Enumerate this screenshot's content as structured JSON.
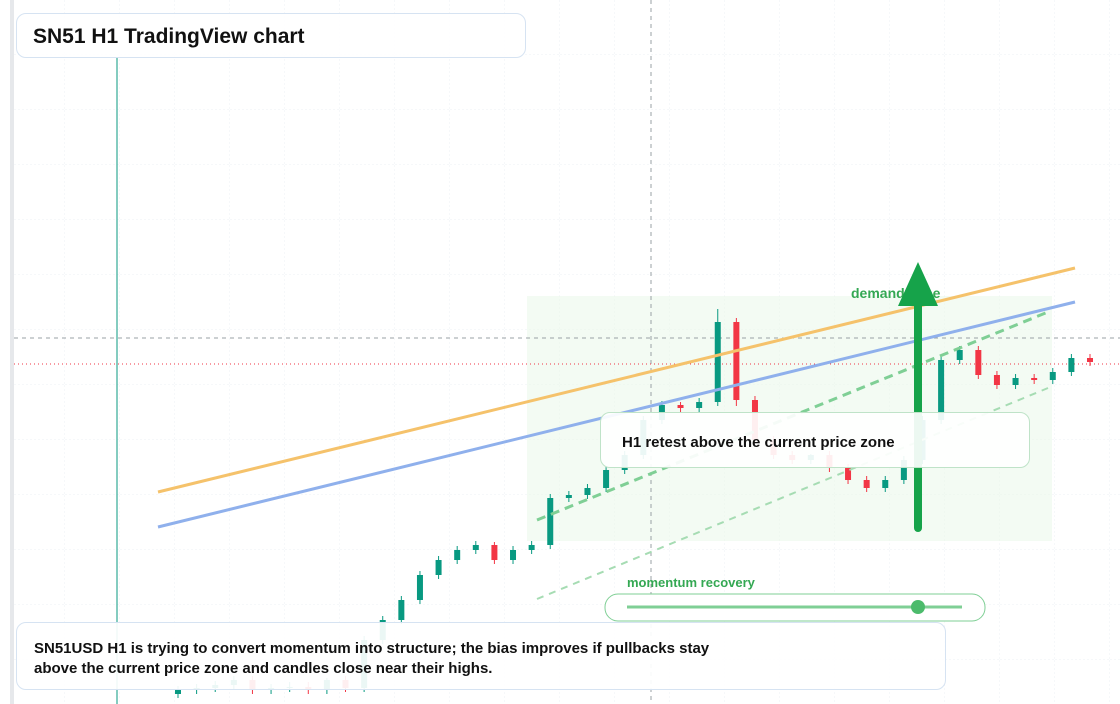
{
  "chart_data": {
    "type": "candlestick",
    "title": "SN51 H1 TradingView chart",
    "annotations": {
      "zone": "demand zone",
      "retest": "H1 retest above the current price zone",
      "momentum": "momentum recovery",
      "note": "SN51USD H1 is trying to convert momentum into structure; the bias improves if pullbacks stay above the current price zone and candles close near their highs."
    },
    "up_color": "#089981",
    "down_color": "#f23645",
    "ylim": [
      0,
      704
    ],
    "open": [
      10,
      14,
      16,
      19,
      24,
      14,
      16,
      17,
      14,
      24,
      16,
      64,
      84,
      104,
      129,
      144,
      154,
      159,
      144,
      154,
      159,
      206,
      209,
      216,
      234,
      249,
      284,
      299,
      296,
      302,
      382,
      304,
      264,
      249,
      244,
      249,
      236,
      224,
      216,
      224,
      244,
      284,
      344,
      354,
      329,
      319,
      326,
      324,
      332,
      346
    ],
    "high": [
      18,
      20,
      23,
      28,
      28,
      20,
      22,
      22,
      26,
      28,
      68,
      88,
      108,
      133,
      148,
      158,
      163,
      162,
      158,
      163,
      210,
      213,
      220,
      238,
      253,
      288,
      303,
      302,
      306,
      395,
      386,
      308,
      268,
      253,
      250,
      253,
      240,
      228,
      228,
      248,
      288,
      348,
      358,
      358,
      333,
      330,
      330,
      336,
      350,
      350
    ],
    "low": [
      6,
      10,
      12,
      15,
      10,
      10,
      12,
      10,
      10,
      12,
      12,
      60,
      80,
      100,
      125,
      140,
      150,
      140,
      140,
      150,
      155,
      202,
      205,
      212,
      230,
      245,
      280,
      292,
      292,
      298,
      298,
      260,
      245,
      240,
      240,
      232,
      220,
      212,
      212,
      220,
      240,
      280,
      340,
      325,
      315,
      315,
      320,
      320,
      328,
      338
    ],
    "close": [
      14,
      16,
      19,
      24,
      14,
      16,
      17,
      14,
      24,
      16,
      64,
      84,
      104,
      129,
      144,
      154,
      159,
      144,
      154,
      159,
      206,
      209,
      216,
      234,
      249,
      284,
      299,
      296,
      302,
      382,
      304,
      264,
      249,
      244,
      249,
      236,
      224,
      216,
      224,
      244,
      284,
      344,
      354,
      329,
      319,
      326,
      324,
      332,
      346,
      342
    ]
  }
}
